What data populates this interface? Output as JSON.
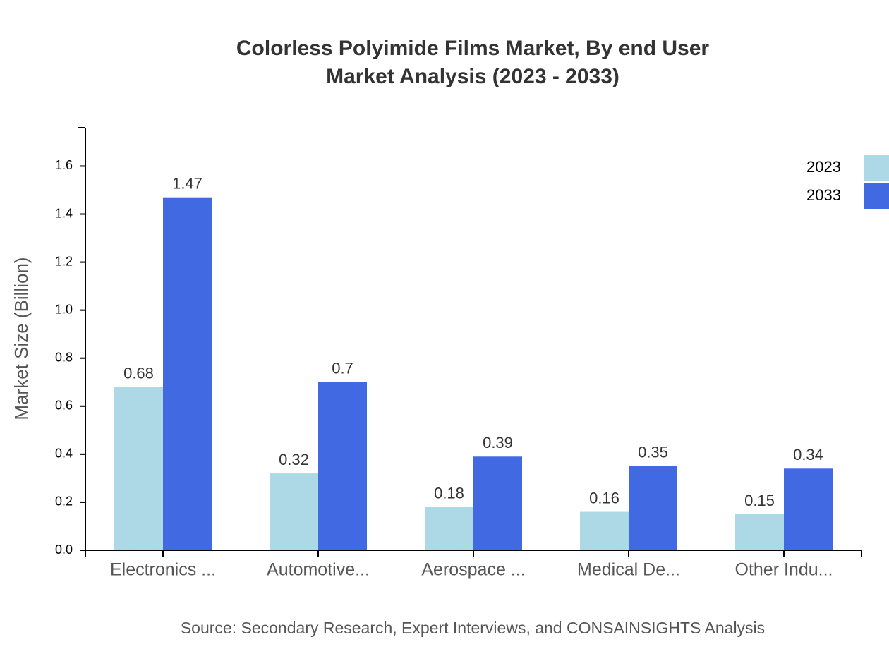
{
  "chart_data": {
    "type": "bar",
    "title": [
      "Colorless Polyimide Films Market, By end User",
      "Market Analysis (2023 - 2033)"
    ],
    "y_label": "Market Size (Billion)",
    "source": "Source: Secondary Research, Expert Interviews, and CONSAINSIGHTS Analysis",
    "categories": [
      "Electronics ...",
      "Automotive...",
      "Aerospace ...",
      "Medical De...",
      "Other Indu..."
    ],
    "series": [
      {
        "name": "2023",
        "color": "#add8e6",
        "values": [
          0.68,
          0.32,
          0.18,
          0.16,
          0.15
        ]
      },
      {
        "name": "2033",
        "color": "#4169e1",
        "values": [
          1.47,
          0.7,
          0.39,
          0.35,
          0.34
        ]
      }
    ],
    "ylim": [
      0,
      1.76
    ],
    "yticks": [
      {
        "value": 0,
        "label": "0.0"
      },
      0.2,
      0.4,
      0.6,
      0.8,
      {
        "value": 1,
        "label": "1.0"
      },
      1.2,
      1.4,
      1.6
    ],
    "legend": "top-right"
  }
}
